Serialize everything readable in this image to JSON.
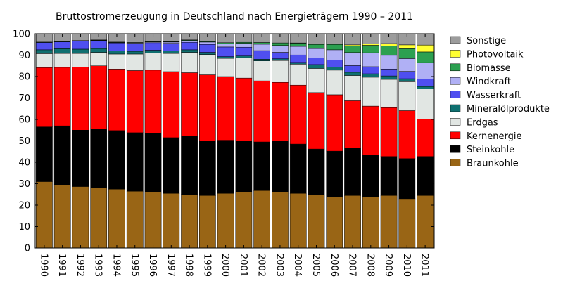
{
  "chart_data": {
    "type": "bar",
    "stacked": true,
    "title": "Bruttostromerzeugung in Deutschland nach Energieträgern 1990 – 2011",
    "xlabel": "",
    "ylabel": "",
    "ylim": [
      0,
      100
    ],
    "yticks": [
      "0",
      "10",
      "20",
      "30",
      "40",
      "50",
      "60",
      "70",
      "80",
      "90",
      "100"
    ],
    "grid": false,
    "legend_position": "right",
    "categories": [
      "1990",
      "1991",
      "1992",
      "1993",
      "1994",
      "1995",
      "1996",
      "1997",
      "1998",
      "1999",
      "2000",
      "2001",
      "2002",
      "2003",
      "2004",
      "2005",
      "2006",
      "2007",
      "2008",
      "2009",
      "2010",
      "2011"
    ],
    "series": [
      {
        "name": "Braunkohle",
        "color": "#996515",
        "values": [
          31,
          29.5,
          28.7,
          28,
          27.5,
          26.5,
          26,
          25.5,
          25,
          24.5,
          25.5,
          26.2,
          26.8,
          26,
          25.5,
          24.7,
          23.7,
          24.5,
          23.7,
          24.5,
          23,
          24.5
        ]
      },
      {
        "name": "Steinkohle",
        "color": "#000000",
        "values": [
          25.5,
          27.5,
          26.3,
          27.5,
          27.3,
          27.3,
          27.5,
          26,
          27.3,
          25.5,
          24.8,
          23.8,
          22.7,
          24,
          23,
          21.5,
          21.5,
          22.2,
          19.5,
          18.2,
          18.7,
          18.2
        ]
      },
      {
        "name": "Kernenergie",
        "color": "#ff0000",
        "values": [
          27.7,
          27.3,
          29.5,
          29.5,
          28.7,
          29,
          29.5,
          30.8,
          29.5,
          30.8,
          29.7,
          29.3,
          28.5,
          27.3,
          27.5,
          26.3,
          26.3,
          22,
          23,
          22.8,
          22.4,
          17.5
        ]
      },
      {
        "name": "Erdgas",
        "color": "#e1e6e3",
        "values": [
          6.5,
          6.5,
          6.3,
          6.3,
          7,
          7.7,
          8,
          8.5,
          9.5,
          9.5,
          8.5,
          9.5,
          9.3,
          10.2,
          9.8,
          11.3,
          11.5,
          11.8,
          13.5,
          13.2,
          13.5,
          14
        ]
      },
      {
        "name": "Mineralölprodukte",
        "color": "#0f7070",
        "values": [
          1.8,
          2.2,
          2,
          1.8,
          1.5,
          1.3,
          1.3,
          1.2,
          1.2,
          1,
          0.8,
          0.8,
          0.8,
          0.8,
          0.8,
          1.8,
          1.5,
          1.5,
          1.6,
          1.6,
          1.4,
          1.2
        ]
      },
      {
        "name": "Wasserkraft",
        "color": "#4f4ff0",
        "values": [
          3.4,
          3.2,
          3.7,
          3.7,
          3.7,
          3.6,
          3.5,
          3.5,
          3.5,
          3.7,
          4.5,
          4.1,
          4,
          3,
          3.5,
          3.1,
          3.2,
          3.1,
          3.3,
          3.2,
          3.4,
          3.5
        ]
      },
      {
        "name": "Windkraft",
        "color": "#b0b0f5",
        "values": [
          0,
          0,
          0.1,
          0.1,
          0.2,
          0.3,
          0.4,
          0.6,
          0.8,
          1.1,
          1.5,
          1.8,
          3,
          3.2,
          4,
          4.4,
          4.8,
          6.1,
          6.5,
          6.4,
          6,
          7.6
        ]
      },
      {
        "name": "Biomasse",
        "color": "#2ca050",
        "values": [
          0.2,
          0.2,
          0.2,
          0.2,
          0.2,
          0.2,
          0.2,
          0.2,
          0.3,
          0.3,
          0.5,
          0.5,
          0.8,
          1.2,
          1.5,
          1.9,
          2.5,
          3.1,
          3.5,
          4.4,
          4.6,
          5
        ]
      },
      {
        "name": "Photovoltaik",
        "color": "#ffff33",
        "values": [
          0,
          0,
          0,
          0,
          0,
          0,
          0,
          0,
          0,
          0,
          0,
          0,
          0,
          0,
          0.1,
          0.2,
          0.3,
          0.5,
          0.7,
          1.1,
          1.8,
          3.2
        ]
      },
      {
        "name": "Sonstige",
        "color": "#9c9c9c",
        "values": [
          3.9,
          3.6,
          3.2,
          2.9,
          3.9,
          4.1,
          3.6,
          3.7,
          2.9,
          3.6,
          4.2,
          4,
          4.1,
          4.3,
          4.3,
          4.8,
          4.7,
          5.2,
          4.7,
          4.6,
          5.2,
          5.3
        ]
      }
    ],
    "legend_order": [
      "Sonstige",
      "Photovoltaik",
      "Biomasse",
      "Windkraft",
      "Wasserkraft",
      "Mineralölprodukte",
      "Erdgas",
      "Kernenergie",
      "Steinkohle",
      "Braunkohle"
    ]
  }
}
